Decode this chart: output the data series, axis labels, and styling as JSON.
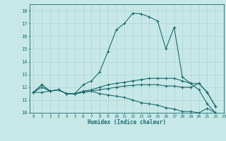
{
  "xlabel": "Humidex (Indice chaleur)",
  "xlim": [
    -0.5,
    23
  ],
  "ylim": [
    10,
    18.5
  ],
  "xtick_labels": [
    "0",
    "1",
    "2",
    "3",
    "4",
    "5",
    "6",
    "7",
    "8",
    "9",
    "10",
    "11",
    "12",
    "13",
    "14",
    "15",
    "16",
    "17",
    "18",
    "19",
    "20",
    "21",
    "22",
    "23"
  ],
  "ytick_labels": [
    "10",
    "11",
    "12",
    "13",
    "14",
    "15",
    "16",
    "17",
    "18"
  ],
  "background_color": "#c8e8e8",
  "line_color": "#1a6b6b",
  "grid_color": "#b0d8d8",
  "series": [
    [
      11.6,
      12.2,
      11.7,
      11.8,
      11.5,
      11.5,
      12.2,
      12.5,
      13.2,
      14.8,
      16.5,
      17.0,
      17.8,
      17.75,
      17.5,
      17.2,
      15.0,
      16.7,
      12.8,
      12.3,
      11.8,
      10.7,
      10.0
    ],
    [
      11.6,
      11.6,
      11.7,
      11.8,
      11.5,
      11.5,
      11.7,
      11.8,
      12.0,
      12.2,
      12.3,
      12.4,
      12.5,
      12.6,
      12.7,
      12.7,
      12.7,
      12.7,
      12.5,
      12.3,
      12.3,
      11.6,
      10.5
    ],
    [
      11.6,
      12.0,
      11.7,
      11.8,
      11.5,
      11.5,
      11.6,
      11.7,
      11.5,
      11.4,
      11.3,
      11.2,
      11.0,
      10.8,
      10.7,
      10.6,
      10.4,
      10.3,
      10.1,
      10.1,
      10.0,
      10.35,
      10.0
    ],
    [
      11.6,
      12.2,
      11.7,
      11.8,
      11.5,
      11.5,
      11.6,
      11.7,
      11.8,
      11.9,
      12.0,
      12.1,
      12.15,
      12.2,
      12.2,
      12.2,
      12.1,
      12.1,
      12.0,
      12.0,
      12.3,
      11.6,
      10.5
    ]
  ]
}
